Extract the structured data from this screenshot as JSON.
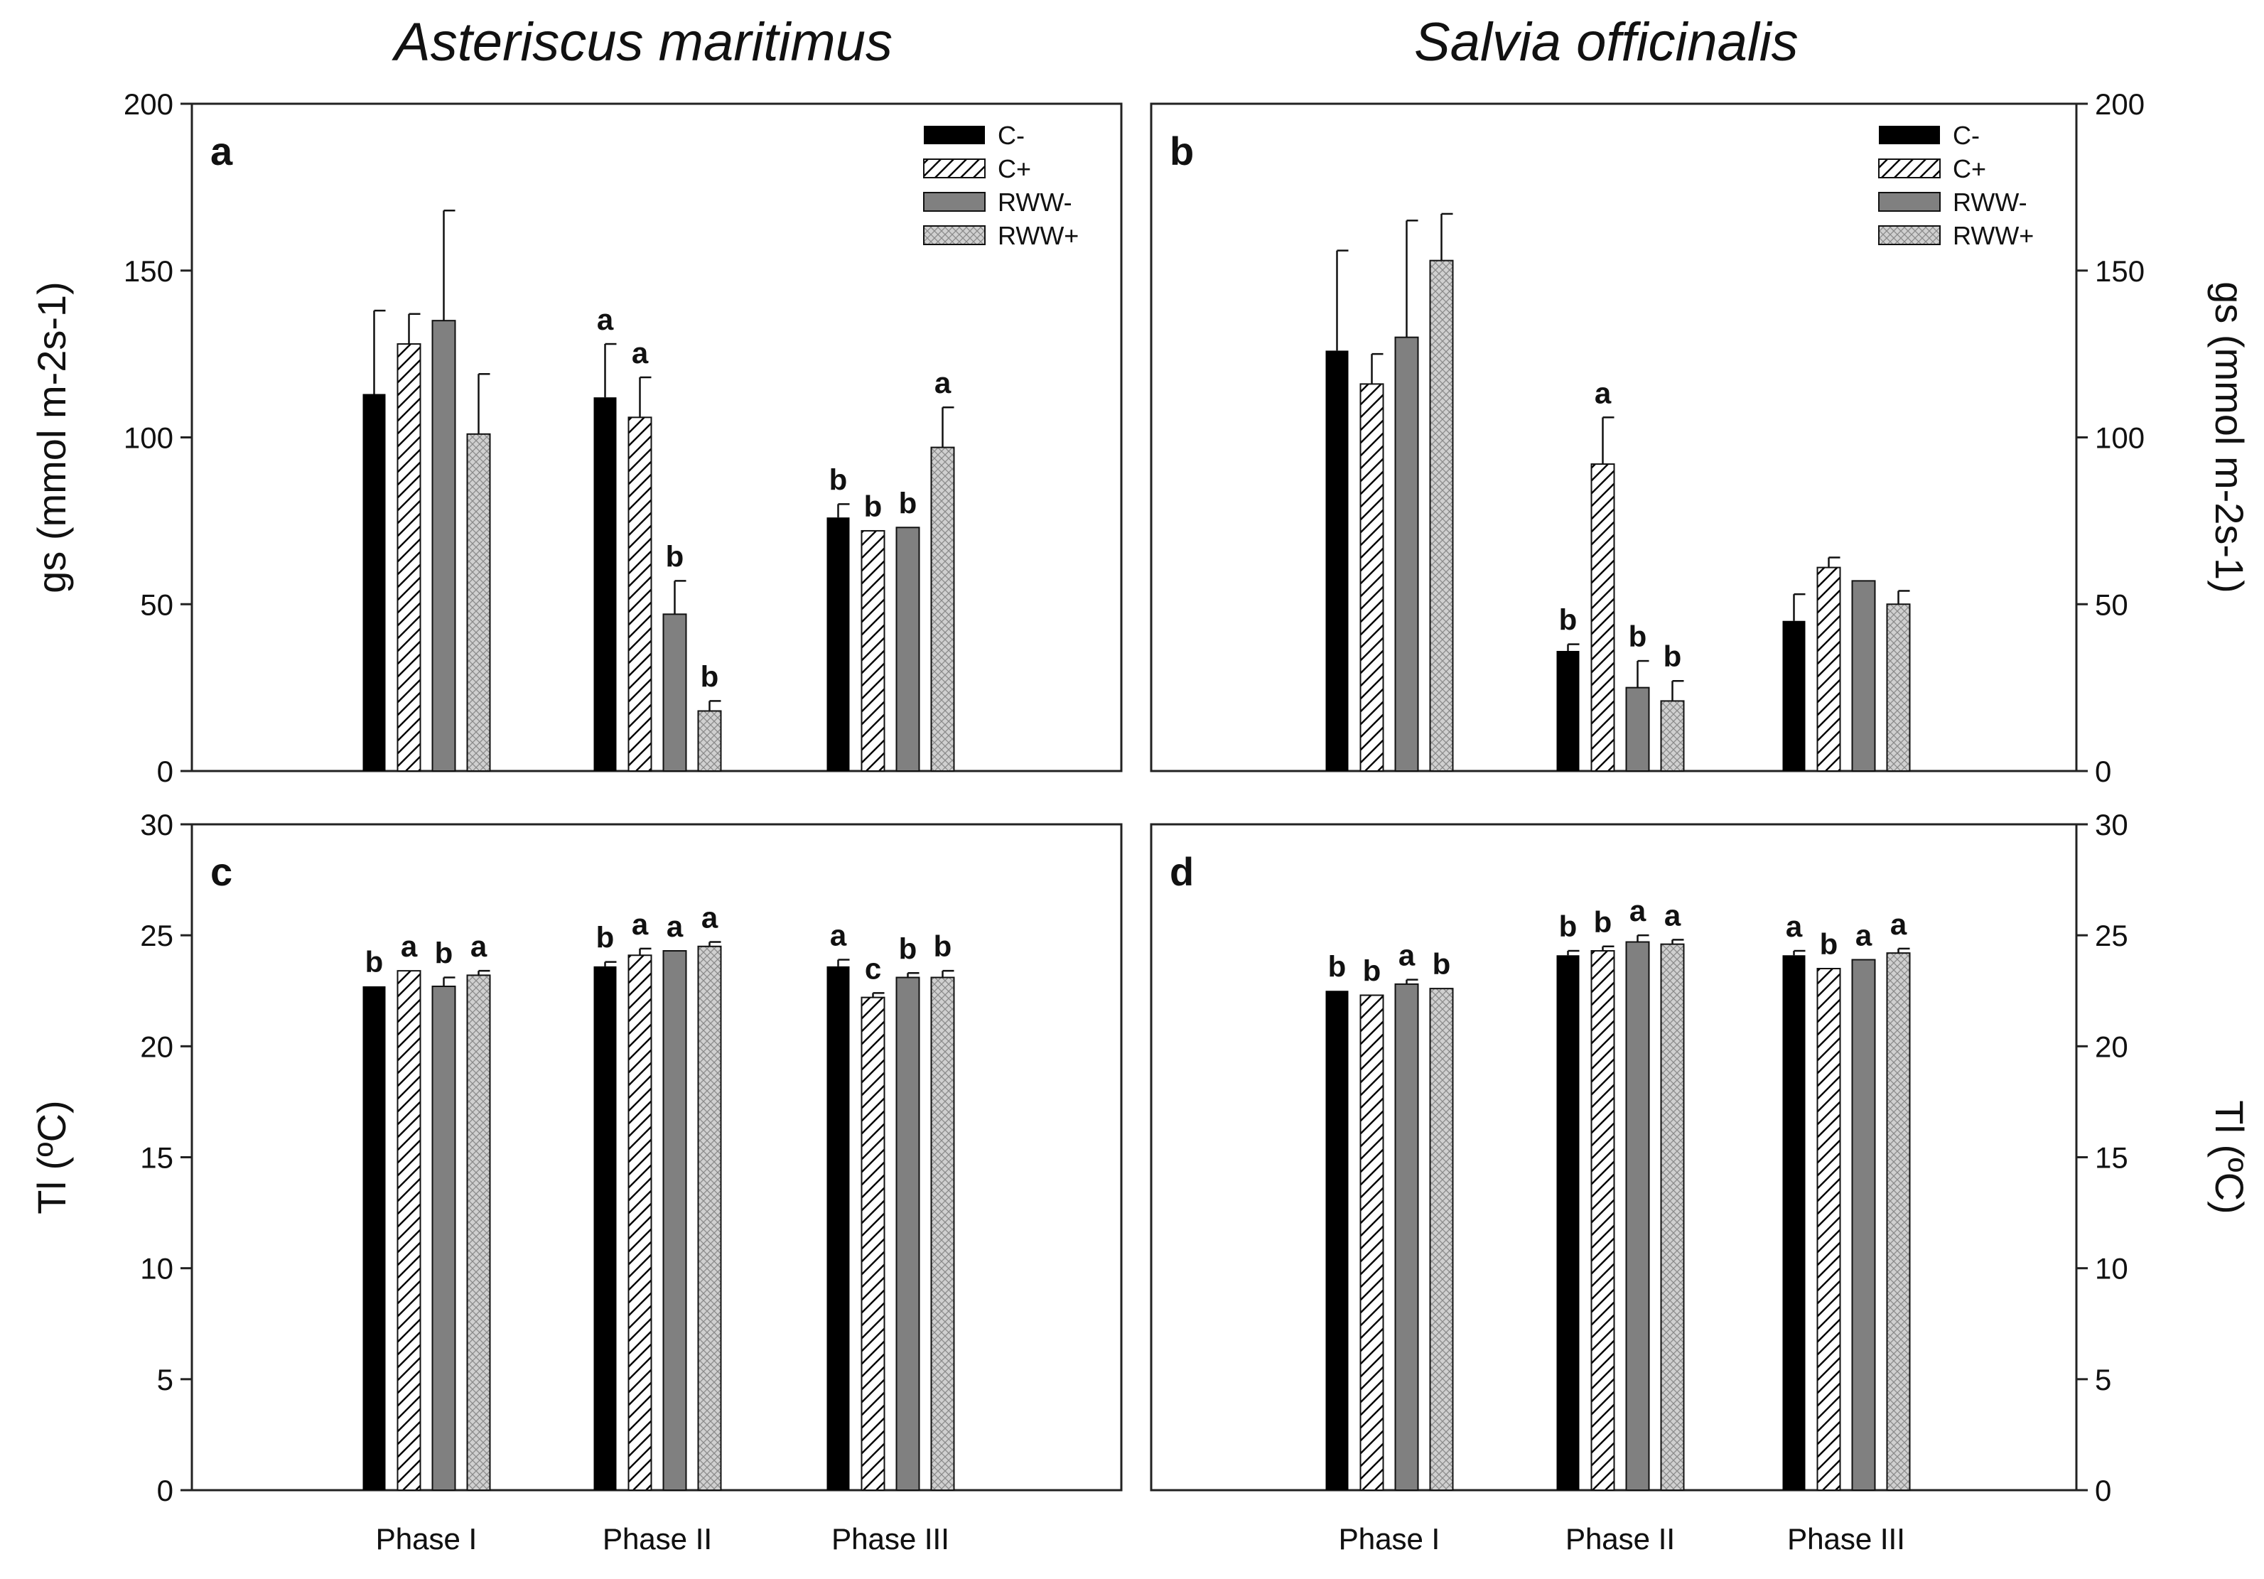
{
  "species": {
    "left": "Asteriscus maritimus",
    "right": "Salvia officinalis"
  },
  "colors": {
    "C-": "#000000",
    "C+": "#ffffff",
    "RWW-": "#808080",
    "RWW+": "#d4d4d4",
    "axis": "#222222"
  },
  "chart_data": [
    {
      "id": "a",
      "type": "bar",
      "panel_label": "a",
      "title": "Asteriscus maritimus",
      "ylabel": "gs (mmol m-2s-1)",
      "ylim": [
        0,
        200
      ],
      "yticks": [
        0,
        50,
        100,
        150,
        200
      ],
      "axis_side": "left",
      "legend": [
        "C-",
        "C+",
        "RWW-",
        "RWW+"
      ],
      "legend_position": "top-right",
      "categories": [
        "Phase I",
        "Phase II",
        "Phase III"
      ],
      "series": [
        {
          "name": "C-",
          "values": [
            113,
            112,
            76
          ],
          "errors": [
            25,
            16,
            4
          ],
          "letters": [
            "",
            "a",
            "b"
          ]
        },
        {
          "name": "C+",
          "values": [
            128,
            106,
            72
          ],
          "errors": [
            9,
            12,
            0
          ],
          "letters": [
            "",
            "a",
            "b"
          ]
        },
        {
          "name": "RWW-",
          "values": [
            135,
            47,
            73
          ],
          "errors": [
            33,
            10,
            0
          ],
          "letters": [
            "",
            "b",
            "b"
          ]
        },
        {
          "name": "RWW+",
          "values": [
            101,
            18,
            97
          ],
          "errors": [
            18,
            3,
            12
          ],
          "letters": [
            "",
            "b",
            "a"
          ]
        }
      ]
    },
    {
      "id": "b",
      "type": "bar",
      "panel_label": "b",
      "title": "Salvia officinalis",
      "ylabel": "gs (mmol m-2s-1)",
      "ylim": [
        0,
        200
      ],
      "yticks": [
        0,
        50,
        100,
        150,
        200
      ],
      "axis_side": "right",
      "legend": [
        "C-",
        "C+",
        "RWW-",
        "RWW+"
      ],
      "legend_position": "top-right",
      "categories": [
        "Phase I",
        "Phase II",
        "Phase III"
      ],
      "series": [
        {
          "name": "C-",
          "values": [
            126,
            36,
            45
          ],
          "errors": [
            30,
            2,
            8
          ],
          "letters": [
            "",
            "b",
            ""
          ]
        },
        {
          "name": "C+",
          "values": [
            116,
            92,
            61
          ],
          "errors": [
            9,
            14,
            3
          ],
          "letters": [
            "",
            "a",
            ""
          ]
        },
        {
          "name": "RWW-",
          "values": [
            130,
            25,
            57
          ],
          "errors": [
            35,
            8,
            0
          ],
          "letters": [
            "",
            "b",
            ""
          ]
        },
        {
          "name": "RWW+",
          "values": [
            153,
            21,
            50
          ],
          "errors": [
            14,
            6,
            4
          ],
          "letters": [
            "",
            "b",
            ""
          ]
        }
      ]
    },
    {
      "id": "c",
      "type": "bar",
      "panel_label": "c",
      "title": "",
      "ylabel": "Tl (ºC)",
      "ylim": [
        0,
        30
      ],
      "yticks": [
        0,
        5,
        10,
        15,
        20,
        25,
        30
      ],
      "axis_side": "left",
      "legend": [],
      "categories": [
        "Phase I",
        "Phase II",
        "Phase III"
      ],
      "series": [
        {
          "name": "C-",
          "values": [
            22.7,
            23.6,
            23.6
          ],
          "errors": [
            0,
            0.2,
            0.3
          ],
          "letters": [
            "b",
            "b",
            "a"
          ]
        },
        {
          "name": "C+",
          "values": [
            23.4,
            24.1,
            22.2
          ],
          "errors": [
            0,
            0.3,
            0.2
          ],
          "letters": [
            "a",
            "a",
            "c"
          ]
        },
        {
          "name": "RWW-",
          "values": [
            22.7,
            24.3,
            23.1
          ],
          "errors": [
            0.4,
            0,
            0.2
          ],
          "letters": [
            "b",
            "a",
            "b"
          ]
        },
        {
          "name": "RWW+",
          "values": [
            23.2,
            24.5,
            23.1
          ],
          "errors": [
            0.2,
            0.2,
            0.3
          ],
          "letters": [
            "a",
            "a",
            "b"
          ]
        }
      ]
    },
    {
      "id": "d",
      "type": "bar",
      "panel_label": "d",
      "title": "",
      "ylabel": "Tl (ºC)",
      "ylim": [
        0,
        30
      ],
      "yticks": [
        0,
        5,
        10,
        15,
        20,
        25,
        30
      ],
      "axis_side": "right",
      "legend": [],
      "categories": [
        "Phase I",
        "Phase II",
        "Phase III"
      ],
      "series": [
        {
          "name": "C-",
          "values": [
            22.5,
            24.1,
            24.1
          ],
          "errors": [
            0,
            0.2,
            0.2
          ],
          "letters": [
            "b",
            "b",
            "a"
          ]
        },
        {
          "name": "C+",
          "values": [
            22.3,
            24.3,
            23.5
          ],
          "errors": [
            0,
            0.2,
            0
          ],
          "letters": [
            "b",
            "b",
            "b"
          ]
        },
        {
          "name": "RWW-",
          "values": [
            22.8,
            24.7,
            23.9
          ],
          "errors": [
            0.2,
            0.3,
            0
          ],
          "letters": [
            "a",
            "a",
            "a"
          ]
        },
        {
          "name": "RWW+",
          "values": [
            22.6,
            24.6,
            24.2
          ],
          "errors": [
            0,
            0.2,
            0.2
          ],
          "letters": [
            "b",
            "a",
            "a"
          ]
        }
      ]
    }
  ]
}
